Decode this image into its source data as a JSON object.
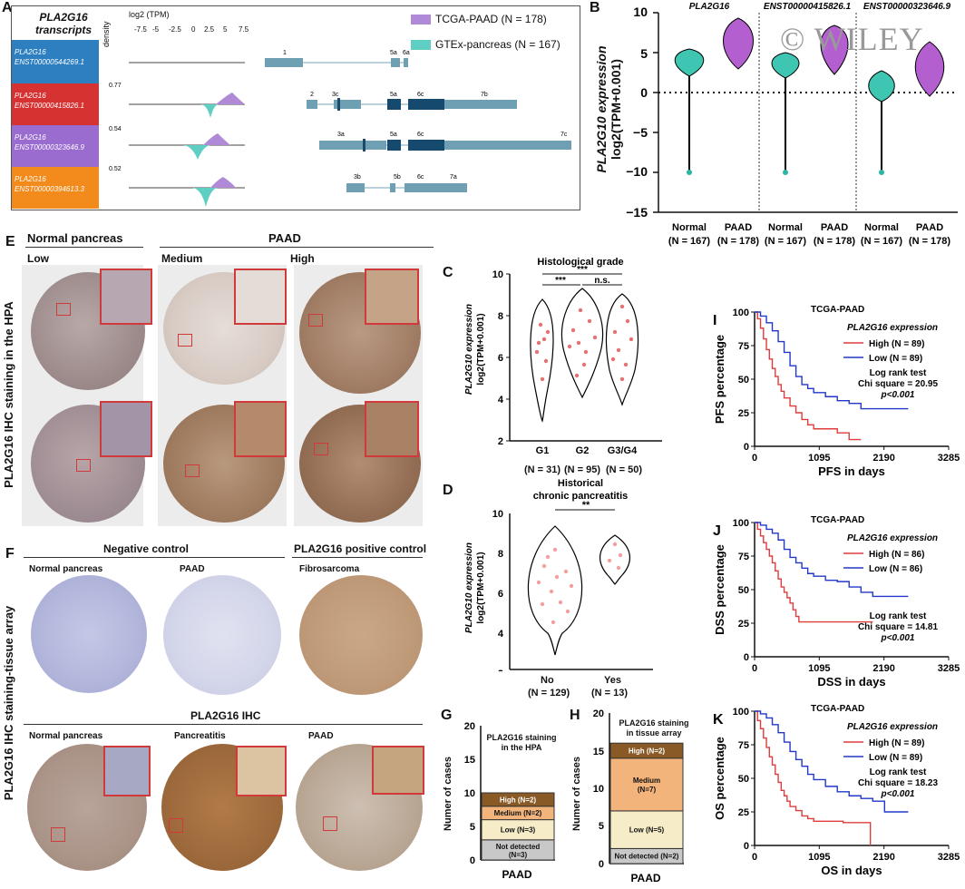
{
  "watermark": "© WILEY",
  "panels": {
    "A": {
      "letter": "A",
      "title": "PLA2G16 transcripts",
      "axis_label": "log2 (TPM)",
      "ticks": [
        "-7.5",
        "-5",
        "-2.5",
        "0",
        "2.5",
        "5",
        "7.5"
      ],
      "density_label": "density",
      "legend": [
        "TCGA-PAAD (N = 178)",
        "GTEx-pancreas (N = 167)"
      ],
      "colors": {
        "tcga": "#b08ad6",
        "gtex": "#5ecfc2"
      },
      "transcripts": [
        {
          "name": "PLA2G16",
          "id": "ENST00000544269.1",
          "color": "#2e7fc0",
          "density_max": "",
          "exons": [
            "1",
            "5a",
            "6a"
          ]
        },
        {
          "name": "PLA2G16",
          "id": "ENST00000415826.1",
          "color": "#d63232",
          "density_max": "0.77",
          "exons": [
            "2",
            "3c",
            "5a",
            "6c",
            "7b"
          ]
        },
        {
          "name": "PLA2G16",
          "id": "ENST00000323646.9",
          "color": "#9a6ccf",
          "density_max": "0.54",
          "exons": [
            "3a",
            "5a",
            "6c",
            "7c"
          ]
        },
        {
          "name": "PLA2G16",
          "id": "ENST00000394613.3",
          "color": "#f28a1c",
          "density_max": "0.52",
          "exons": [
            "3b",
            "5b",
            "6c",
            "7a"
          ]
        }
      ]
    },
    "B": {
      "letter": "B",
      "ylabel_gene": "PLA2G10 expression",
      "ylabel_unit": "log2(TPM+0.001)",
      "groups": [
        "PLA2G16",
        "ENST00000415826.1",
        "ENST00000323646.9"
      ],
      "categories": [
        "Normal (N = 167)",
        "PAAD (N = 178)"
      ],
      "yticks": [
        "10",
        "5",
        "0",
        "−5",
        "−10",
        "−15"
      ]
    },
    "C": {
      "letter": "C",
      "title": "Histological grade",
      "ylabel": [
        "PLA2G10 expression",
        "log2(TPM+0.001)"
      ],
      "cats": [
        [
          "G1",
          "(N = 31)"
        ],
        [
          "G2",
          "(N = 95)"
        ],
        [
          "G3/G4",
          "(N = 50)"
        ]
      ],
      "sig": [
        "***",
        "***",
        "n.s."
      ],
      "yticks": [
        "10",
        "8",
        "6",
        "4",
        "2"
      ]
    },
    "D": {
      "letter": "D",
      "title": [
        "Historical",
        "chronic pancreatitis"
      ],
      "ylabel": [
        "PLA2G10 expression",
        "log2(TPM+0.001)"
      ],
      "cats": [
        [
          "No",
          "(N = 129)"
        ],
        [
          "Yes",
          "(N = 13)"
        ]
      ],
      "sig": "**",
      "yticks": [
        "10",
        "8",
        "6",
        "4",
        "2"
      ]
    },
    "E": {
      "letter": "E",
      "side": "PLA2G16 IHC staining in the HPA",
      "normal": "Normal pancreas",
      "paad": "PAAD",
      "low": "Low",
      "medium": "Medium",
      "high": "High"
    },
    "F": {
      "letter": "F",
      "side": "PLA2G16 IHC staining-tissue array",
      "neg": "Negative control",
      "pos": "PLA2G16 positive control",
      "normal": "Normal pancreas",
      "paad": "PAAD",
      "fibro": "Fibrosarcoma",
      "ihc": "PLA2G16 IHC",
      "pancreatitis": "Pancreatitis"
    },
    "G": {
      "letter": "G",
      "title": [
        "PLA2G16 staining",
        "in the HPA"
      ],
      "ylabel": "Numer of cases",
      "xlabel": "PAAD",
      "yticks": [
        "20",
        "15",
        "10",
        "5",
        "0"
      ]
    },
    "H": {
      "letter": "H",
      "title": [
        "PLA2G16 staining",
        "in tissue array"
      ],
      "ylabel": "Numer of cases",
      "xlabel": "PAAD",
      "yticks": [
        "20",
        "15",
        "10",
        "5",
        "0"
      ]
    },
    "I": {
      "letter": "I",
      "cohort": "TCGA-PAAD",
      "expr": "PLA2G16 expression",
      "high": "High (N = 89)",
      "low": "Low (N = 89)",
      "test": "Log rank test",
      "chi": "Chi square = 20.95",
      "p": "p<0.001",
      "ylabel": "PFS percentage",
      "xlabel": "PFS in days",
      "xticks": [
        "0",
        "1095",
        "2190",
        "3285"
      ],
      "yticks": [
        "100",
        "75",
        "50",
        "25",
        "0"
      ]
    },
    "J": {
      "letter": "J",
      "cohort": "TCGA-PAAD",
      "expr": "PLA2G16 expression",
      "high": "High (N = 86)",
      "low": "Low (N = 86)",
      "test": "Log rank test",
      "chi": "Chi square = 14.81",
      "p": "p<0.001",
      "ylabel": "DSS percentage",
      "xlabel": "DSS in days",
      "xticks": [
        "0",
        "1095",
        "2190",
        "3285"
      ],
      "yticks": [
        "100",
        "75",
        "50",
        "25",
        "0"
      ]
    },
    "K": {
      "letter": "K",
      "cohort": "TCGA-PAAD",
      "expr": "PLA2G16 expression",
      "high": "High (N = 89)",
      "low": "Low (N = 89)",
      "test": "Log rank test",
      "chi": "Chi square = 18.23",
      "p": "p<0.001",
      "ylabel": "OS percentage",
      "xlabel": "OS in days",
      "xticks": [
        "0",
        "1095",
        "2190",
        "3285"
      ],
      "yticks": [
        "100",
        "75",
        "50",
        "25",
        "0"
      ]
    }
  },
  "chart_data": [
    {
      "panel": "G",
      "type": "bar",
      "stacked": true,
      "categories": [
        "PAAD"
      ],
      "ylim": [
        0,
        20
      ],
      "series": [
        {
          "name": "Not detected (N=3)",
          "values": [
            3
          ],
          "color": "#c8c8c8"
        },
        {
          "name": "Low (N=3)",
          "values": [
            3
          ],
          "color": "#f6ecc8"
        },
        {
          "name": "Medium (N=2)",
          "values": [
            2
          ],
          "color": "#f2b47a"
        },
        {
          "name": "High (N=2)",
          "values": [
            2
          ],
          "color": "#8a5a26"
        }
      ]
    },
    {
      "panel": "H",
      "type": "bar",
      "stacked": true,
      "categories": [
        "PAAD"
      ],
      "ylim": [
        0,
        20
      ],
      "series": [
        {
          "name": "Not detected (N=2)",
          "values": [
            2
          ],
          "color": "#c8c8c8"
        },
        {
          "name": "Low (N=5)",
          "values": [
            5
          ],
          "color": "#f6ecc8"
        },
        {
          "name": "Medium (N=7)",
          "values": [
            7
          ],
          "color": "#f2b47a"
        },
        {
          "name": "High (N=2)",
          "values": [
            2
          ],
          "color": "#8a5a26"
        }
      ]
    },
    {
      "panel": "I",
      "type": "line",
      "xlim": [
        0,
        3285
      ],
      "ylim": [
        0,
        100
      ],
      "series": [
        {
          "name": "High (N = 89)",
          "color": "#e03c3c",
          "x": [
            0,
            50,
            100,
            150,
            200,
            250,
            300,
            350,
            400,
            450,
            500,
            600,
            700,
            800,
            900,
            1000,
            1200,
            1400,
            1600,
            1800
          ],
          "y": [
            100,
            95,
            88,
            80,
            72,
            65,
            58,
            52,
            46,
            41,
            36,
            30,
            25,
            20,
            16,
            13,
            13,
            10,
            5,
            5
          ]
        },
        {
          "name": "Low (N = 89)",
          "color": "#2238c8",
          "x": [
            0,
            100,
            200,
            300,
            400,
            500,
            600,
            700,
            800,
            900,
            1000,
            1200,
            1400,
            1600,
            1800,
            2000,
            2200,
            2400,
            2600
          ],
          "y": [
            100,
            97,
            92,
            86,
            78,
            70,
            60,
            52,
            46,
            43,
            40,
            37,
            34,
            32,
            28,
            28,
            28,
            28,
            28
          ]
        }
      ]
    },
    {
      "panel": "J",
      "type": "line",
      "xlim": [
        0,
        3285
      ],
      "ylim": [
        0,
        100
      ],
      "series": [
        {
          "name": "High (N = 86)",
          "color": "#e03c3c",
          "x": [
            0,
            50,
            100,
            150,
            200,
            250,
            300,
            350,
            400,
            450,
            500,
            550,
            600,
            650,
            700,
            750,
            1000,
            1500,
            2000
          ],
          "y": [
            100,
            95,
            90,
            85,
            80,
            75,
            70,
            64,
            58,
            52,
            48,
            44,
            40,
            35,
            30,
            26,
            26,
            26,
            26
          ]
        },
        {
          "name": "Low (N = 86)",
          "color": "#2238c8",
          "x": [
            0,
            100,
            200,
            300,
            400,
            500,
            600,
            700,
            800,
            900,
            1000,
            1200,
            1400,
            1600,
            1800,
            2000,
            2200,
            2400,
            2600
          ],
          "y": [
            100,
            98,
            95,
            92,
            87,
            80,
            74,
            70,
            66,
            62,
            60,
            57,
            56,
            52,
            48,
            45,
            45,
            45,
            45
          ]
        }
      ]
    },
    {
      "panel": "K",
      "type": "line",
      "xlim": [
        0,
        3285
      ],
      "ylim": [
        0,
        100
      ],
      "series": [
        {
          "name": "High (N = 89)",
          "color": "#e03c3c",
          "x": [
            0,
            50,
            100,
            150,
            200,
            250,
            300,
            350,
            400,
            450,
            500,
            550,
            600,
            700,
            800,
            900,
            1000,
            1200,
            1500,
            1950,
            1960
          ],
          "y": [
            100,
            93,
            87,
            80,
            73,
            66,
            60,
            53,
            47,
            41,
            37,
            33,
            29,
            26,
            22,
            20,
            18,
            18,
            17,
            17,
            0
          ]
        },
        {
          "name": "Low (N = 89)",
          "color": "#2238c8",
          "x": [
            0,
            100,
            200,
            300,
            400,
            500,
            600,
            700,
            800,
            900,
            1000,
            1200,
            1400,
            1600,
            1800,
            2000,
            2200,
            2400,
            2600
          ],
          "y": [
            100,
            98,
            95,
            90,
            84,
            77,
            70,
            64,
            59,
            53,
            49,
            44,
            40,
            37,
            35,
            33,
            25,
            25,
            25
          ]
        }
      ]
    }
  ]
}
